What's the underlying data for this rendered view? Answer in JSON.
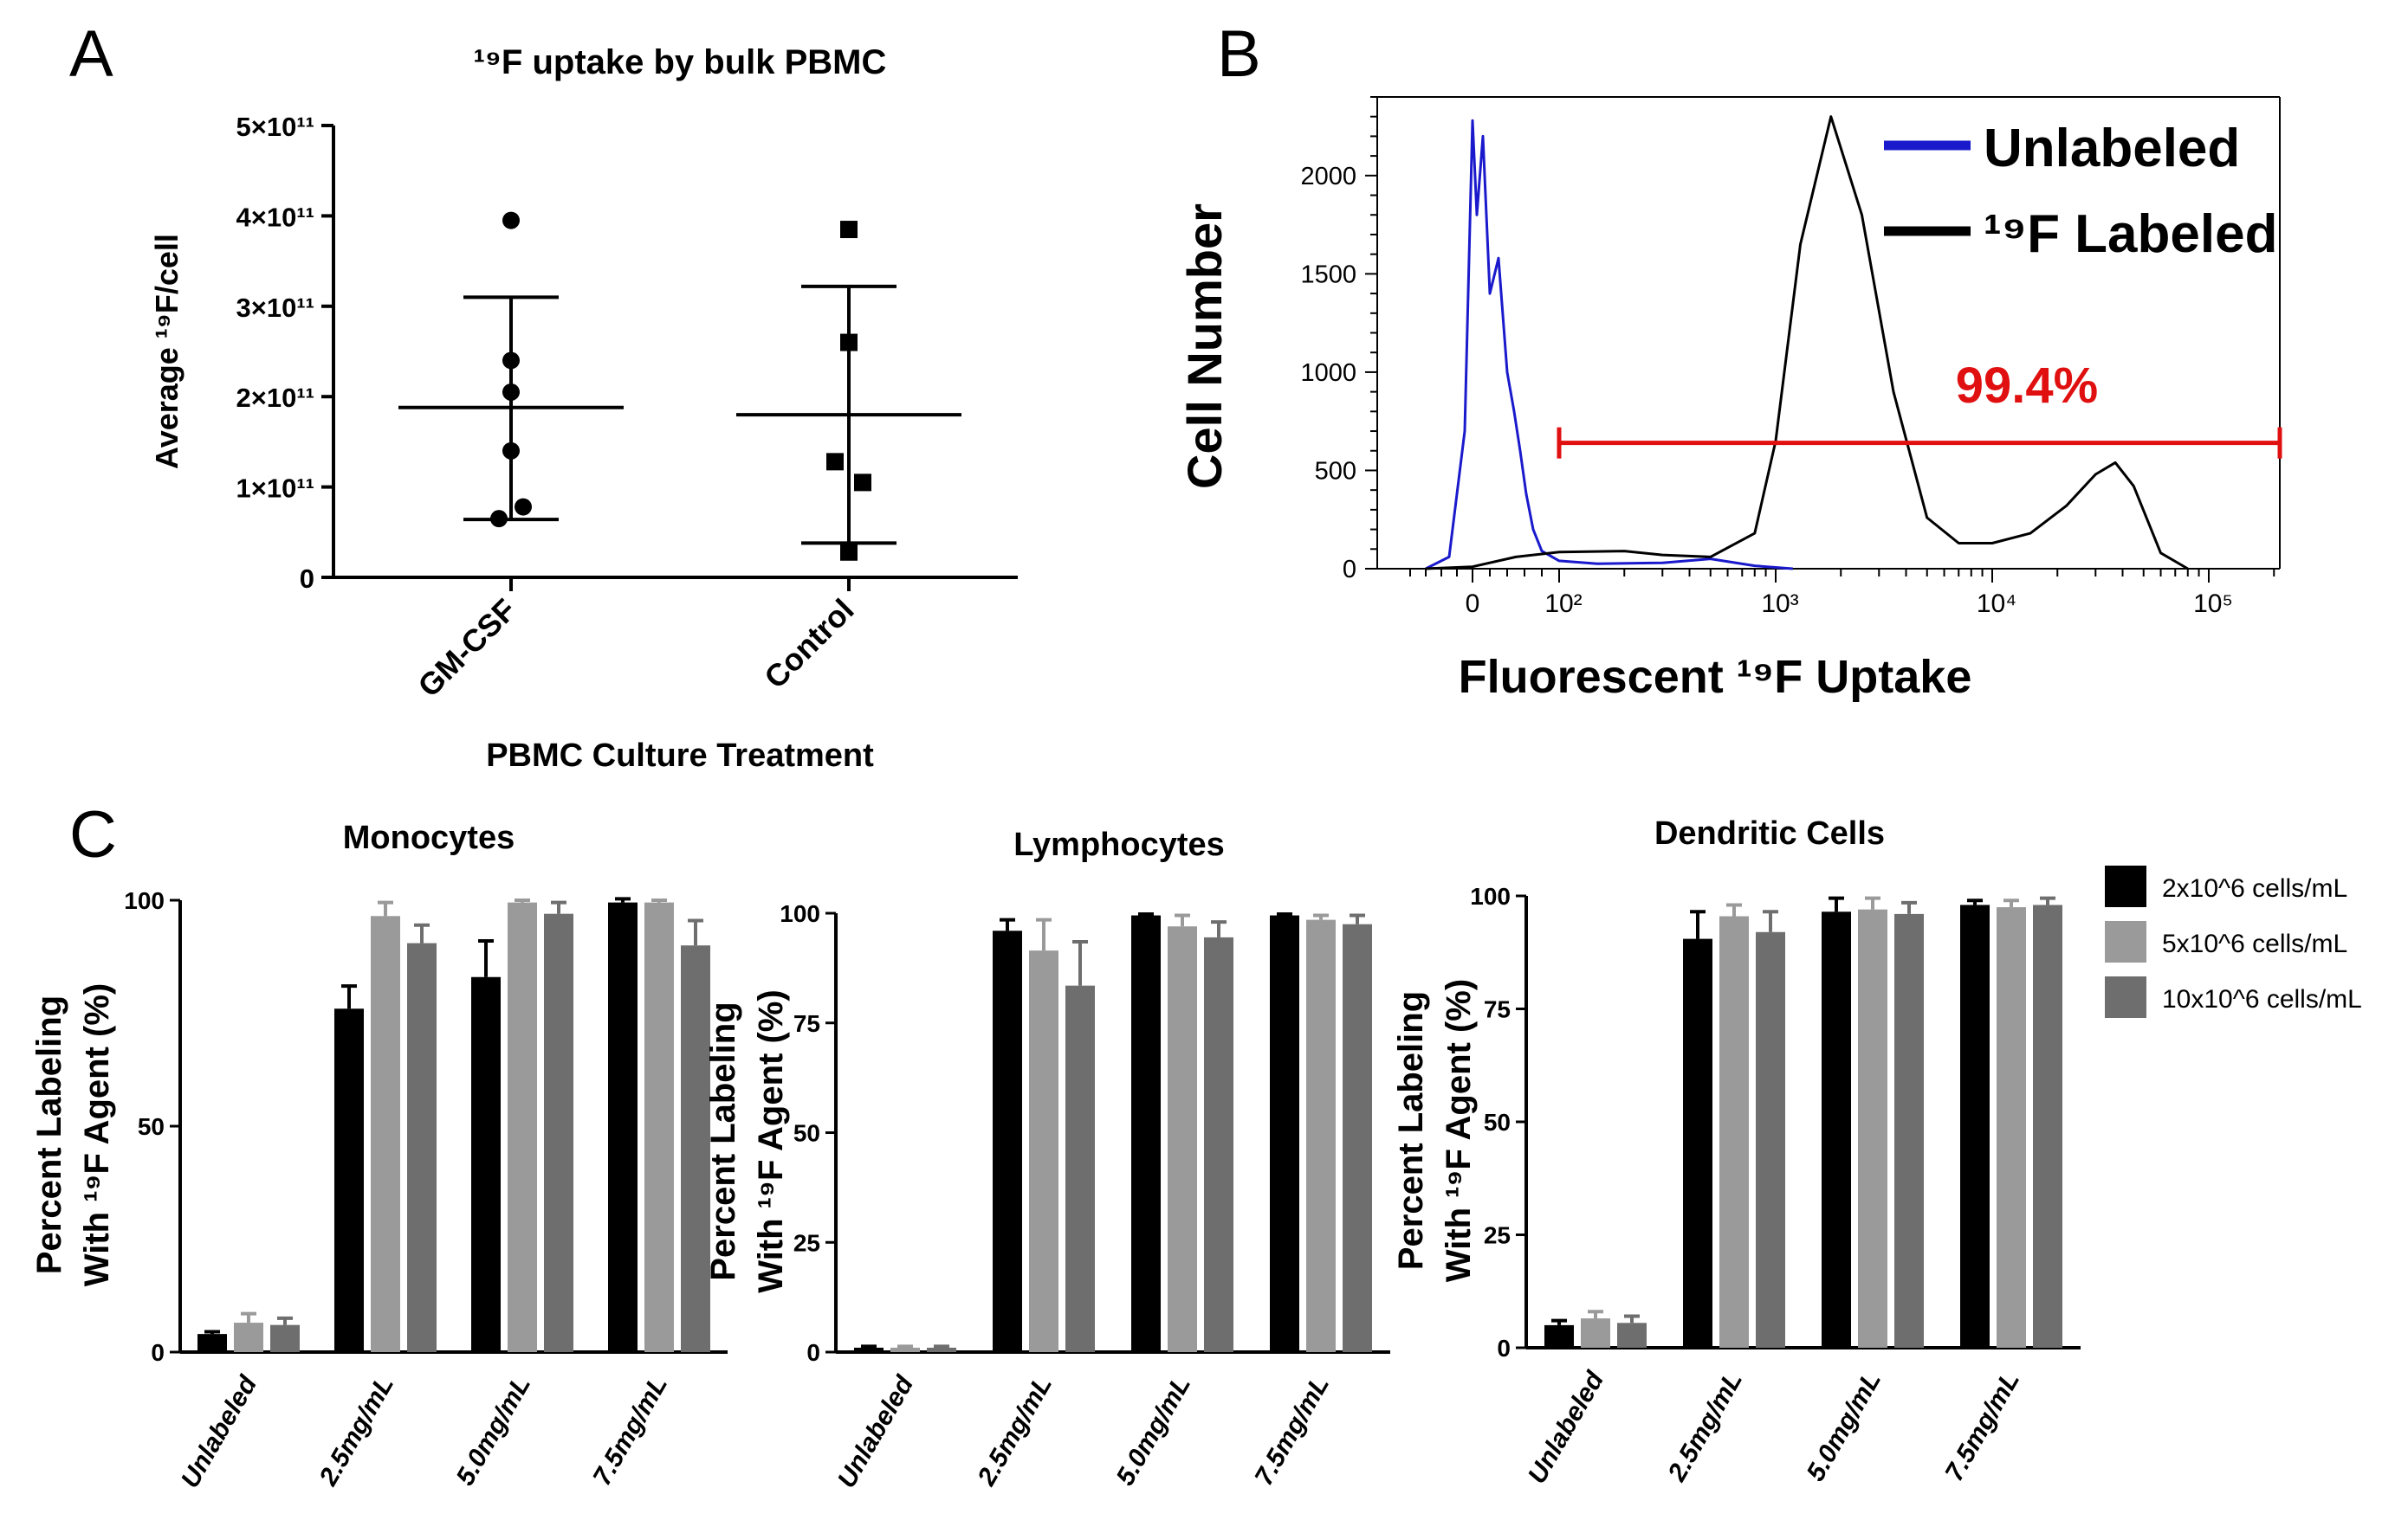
{
  "panels": {
    "a": {
      "letter": "A"
    },
    "b": {
      "letter": "B"
    },
    "c": {
      "letter": "C"
    }
  },
  "chart_data": [
    {
      "id": "A",
      "type": "scatter",
      "title": "¹⁹F uptake by bulk PBMC",
      "xlabel": "PBMC Culture Treatment",
      "ylabel": "Average ¹⁹F/cell",
      "ylim": [
        0,
        500000000000.0
      ],
      "yticks": [
        0,
        100000000000.0,
        200000000000.0,
        300000000000.0,
        400000000000.0,
        500000000000.0
      ],
      "yticklabels": [
        "0",
        "1×10¹¹",
        "2×10¹¹",
        "3×10¹¹",
        "4×10¹¹",
        "5×10¹¹"
      ],
      "categories": [
        "GM-CSF",
        "Control"
      ],
      "groups": [
        {
          "name": "GM-CSF",
          "marker": "circle",
          "values": [
            395000000000.0,
            240000000000.0,
            205000000000.0,
            140000000000.0,
            78000000000.0,
            65000000000.0
          ],
          "mean": 188000000000.0,
          "sd_low": 64000000000.0,
          "sd_high": 310000000000.0
        },
        {
          "name": "Control",
          "marker": "square",
          "values": [
            385000000000.0,
            260000000000.0,
            128000000000.0,
            105000000000.0,
            28000000000.0
          ],
          "mean": 180000000000.0,
          "sd_low": 38000000000.0,
          "sd_high": 322000000000.0
        }
      ]
    },
    {
      "id": "B",
      "type": "line",
      "xlabel": "Fluorescent ¹⁹F Uptake",
      "ylabel": "Cell Number",
      "xscale": "biexponential",
      "ylim": [
        0,
        2400
      ],
      "yticks": [
        0,
        500,
        1000,
        1500,
        2000
      ],
      "xticklabels": [
        "0",
        "10²",
        "10³",
        "10⁴",
        "10⁵"
      ],
      "gate": {
        "label": "99.4%",
        "from": 100,
        "to": 260000
      },
      "series": [
        {
          "name": "Unlabeled",
          "color": "#1a1acc",
          "x": [
            -60,
            -30,
            -10,
            0,
            5,
            12,
            20,
            30,
            40,
            48,
            55,
            62,
            70,
            80,
            100,
            150,
            300,
            500,
            800,
            1200
          ],
          "y": [
            0,
            60,
            700,
            2280,
            1800,
            2200,
            1400,
            1580,
            1000,
            800,
            600,
            380,
            200,
            90,
            40,
            25,
            30,
            50,
            15,
            0
          ]
        },
        {
          "name": "¹⁹F Labeled",
          "color": "#000000",
          "x": [
            -60,
            0,
            50,
            100,
            200,
            300,
            500,
            800,
            1000,
            1300,
            1800,
            2500,
            3500,
            5000,
            7000,
            10000,
            15000,
            22000,
            30000,
            37000,
            45000,
            60000,
            80000
          ],
          "y": [
            0,
            10,
            60,
            85,
            90,
            70,
            60,
            180,
            650,
            1650,
            2300,
            1800,
            900,
            260,
            130,
            130,
            180,
            320,
            480,
            540,
            420,
            80,
            0
          ]
        }
      ]
    },
    {
      "id": "C1",
      "type": "bar",
      "title": "Monocytes",
      "ylabel": "Percent Labeling With ¹⁹F Agent (%)",
      "ylim": [
        0,
        100
      ],
      "yticks": [
        0,
        50,
        100
      ],
      "categories": [
        "Unlabeled",
        "2.5mg/mL",
        "5.0mg/mL",
        "7.5mg/mL"
      ],
      "series": [
        {
          "name": "2x10^6 cells/mL",
          "values": [
            4,
            76,
            83,
            99.5
          ],
          "errors": [
            0.5,
            5,
            8,
            0.8
          ]
        },
        {
          "name": "5x10^6 cells/mL",
          "values": [
            6.5,
            96.5,
            99.5,
            99.5
          ],
          "errors": [
            2,
            3,
            0.5,
            0.5
          ]
        },
        {
          "name": "10x10^6 cells/mL",
          "values": [
            6,
            90.5,
            97,
            90
          ],
          "errors": [
            1.5,
            4,
            2.5,
            5.5
          ]
        }
      ]
    },
    {
      "id": "C2",
      "type": "bar",
      "title": "Lymphocytes",
      "ylabel": "Percent Labeling With ¹⁹F Agent (%)",
      "ylim": [
        0,
        100
      ],
      "yticks": [
        0,
        25,
        50,
        75,
        100
      ],
      "categories": [
        "Unlabeled",
        "2.5mg/mL",
        "5.0mg/mL",
        "7.5mg/mL"
      ],
      "series": [
        {
          "name": "2x10^6 cells/mL",
          "values": [
            1,
            96,
            99.5,
            99.5
          ],
          "errors": [
            0.3,
            2.5,
            0.3,
            0.3
          ]
        },
        {
          "name": "5x10^6 cells/mL",
          "values": [
            1,
            91.5,
            97,
            98.5
          ],
          "errors": [
            0.3,
            7,
            2.5,
            1
          ]
        },
        {
          "name": "10x10^6 cells/mL",
          "values": [
            1,
            83.5,
            94.5,
            97.5
          ],
          "errors": [
            0.3,
            10,
            3.5,
            2
          ]
        }
      ]
    },
    {
      "id": "C3",
      "type": "bar",
      "title": "Dendritic Cells",
      "ylabel": "Percent Labeling With ¹⁹F Agent (%)",
      "ylim": [
        0,
        100
      ],
      "yticks": [
        0,
        25,
        50,
        75,
        100
      ],
      "categories": [
        "Unlabeled",
        "2.5mg/mL",
        "5.0mg/mL",
        "7.5mg/mL"
      ],
      "series": [
        {
          "name": "2x10^6 cells/mL",
          "values": [
            5,
            90.5,
            96.5,
            98
          ],
          "errors": [
            1,
            6,
            3,
            1
          ]
        },
        {
          "name": "5x10^6 cells/mL",
          "values": [
            6.5,
            95.5,
            97,
            97.5
          ],
          "errors": [
            1.5,
            2.5,
            2.5,
            1.5
          ]
        },
        {
          "name": "10x10^6 cells/mL",
          "values": [
            5.5,
            92,
            96,
            98
          ],
          "errors": [
            1.5,
            4.5,
            2.5,
            1.5
          ]
        }
      ]
    }
  ],
  "legend_c": {
    "items": [
      {
        "label": "2x10^6 cells/mL",
        "color": "#000000"
      },
      {
        "label": "5x10^6 cells/mL",
        "color": "#9a9a9a"
      },
      {
        "label": "10x10^6 cells/mL",
        "color": "#6e6e6e"
      }
    ]
  },
  "colors": {
    "gate": "#e01010",
    "unlabeled": "#1a1acc",
    "labeled": "#000000",
    "bar_2x": "#000000",
    "bar_5x": "#9a9a9a",
    "bar_10x": "#6e6e6e"
  }
}
